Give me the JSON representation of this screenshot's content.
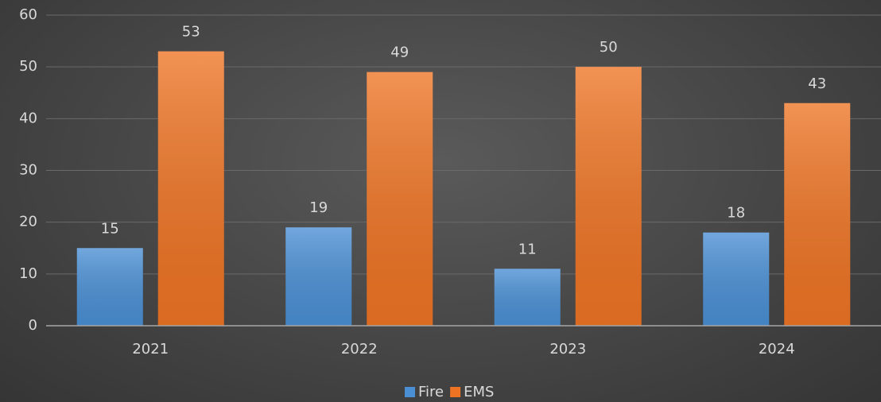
{
  "chart_data": {
    "type": "bar",
    "categories": [
      "2021",
      "2022",
      "2023",
      "2024"
    ],
    "series": [
      {
        "name": "Fire",
        "color": "#4a8fd4",
        "values": [
          15,
          19,
          11,
          18
        ]
      },
      {
        "name": "EMS",
        "color": "#ee7424",
        "values": [
          53,
          49,
          50,
          43
        ]
      }
    ],
    "ylim": [
      0,
      60
    ],
    "yticks": [
      0,
      10,
      20,
      30,
      40,
      50,
      60
    ],
    "grid": true,
    "legend": "bottom"
  }
}
